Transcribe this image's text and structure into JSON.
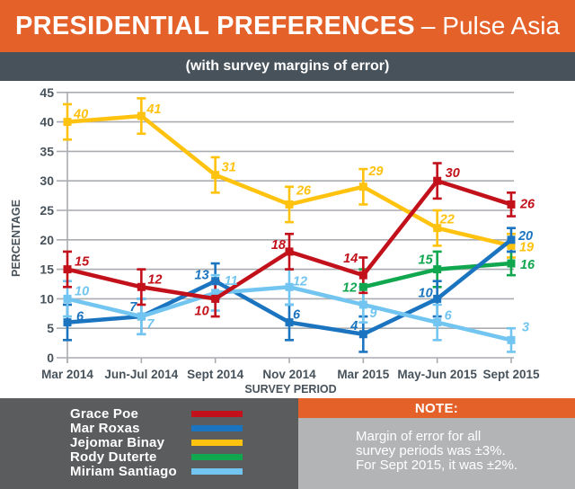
{
  "header": {
    "title_bold": "PRESIDENTIAL PREFERENCES",
    "title_rest": "– Pulse Asia",
    "subtitle": "(with survey margins of error)"
  },
  "chart_data": {
    "type": "line",
    "title": "PRESIDENTIAL PREFERENCES – Pulse Asia",
    "subtitle": "(with survey margins of error)",
    "categories": [
      "Mar 2014",
      "Jun-Jul 2014",
      "Sept 2014",
      "Nov 2014",
      "Mar 2015",
      "May-Jun 2015",
      "Sept 2015"
    ],
    "xlabel": "SURVEY PERIOD",
    "ylabel": "PERCENTAGE",
    "ylim": [
      0,
      45
    ],
    "ytick_step": 5,
    "grid": true,
    "legend_position": "bottom-left",
    "error_margins_pct": [
      3,
      3,
      3,
      3,
      3,
      3,
      2
    ],
    "series": [
      {
        "name": "Grace Poe",
        "color": "#C2111B",
        "z": 5,
        "values": [
          15,
          12,
          10,
          18,
          14,
          30,
          26
        ],
        "label_dx": [
          8,
          7,
          -7,
          -4,
          -6,
          9,
          10
        ],
        "label_dy": [
          -4,
          -4,
          18,
          -3,
          -14,
          -4,
          4
        ]
      },
      {
        "name": "Mar Roxas",
        "color": "#1B74BF",
        "z": 3,
        "values": [
          6,
          7,
          13,
          6,
          4,
          10,
          20
        ],
        "label_dx": [
          10,
          -5,
          -7,
          4,
          -6,
          -5,
          8
        ],
        "label_dy": [
          -2,
          -6,
          -2,
          -4,
          -5,
          -2,
          0
        ]
      },
      {
        "name": "Jejomar Binay",
        "color": "#FFC20E",
        "z": 1,
        "values": [
          40,
          41,
          31,
          26,
          29,
          22,
          19
        ],
        "label_dx": [
          7,
          6,
          7,
          8,
          6,
          3,
          9
        ],
        "label_dy": [
          -4,
          -3,
          -4,
          -11,
          -13,
          -5,
          6
        ]
      },
      {
        "name": "Rody Duterte",
        "color": "#10A74F",
        "z": 2,
        "values": [
          null,
          null,
          null,
          null,
          12,
          15,
          16
        ],
        "label_dx": [
          0,
          0,
          0,
          0,
          -7,
          -5,
          10
        ],
        "label_dy": [
          0,
          0,
          0,
          0,
          5,
          -6,
          6
        ]
      },
      {
        "name": "Miriam Santiago",
        "color": "#72C5F0",
        "z": 4,
        "values": [
          10,
          7,
          11,
          12,
          9,
          6,
          3
        ],
        "label_dx": [
          8,
          6,
          10,
          4,
          7,
          8,
          12
        ],
        "label_dy": [
          -4,
          13,
          -9,
          -2,
          14,
          -3,
          -10
        ]
      }
    ]
  },
  "note": {
    "title": "NOTE:",
    "lines": [
      "Margin of error for all",
      "survey periods was ±3%.",
      "For Sept 2015, it was ±2%."
    ]
  },
  "colors": {
    "header_bg": "#E4622A",
    "subtitle_bg": "#47525B",
    "legend_bg": "#5B5C5E",
    "note_header_bg": "#E4622A",
    "note_body_bg": "#B2B4B6",
    "grid": "#A9ACB0",
    "axis_text": "#47525B",
    "chart_bg": "#FFFFFF",
    "text_light": "#FFFFFF"
  }
}
